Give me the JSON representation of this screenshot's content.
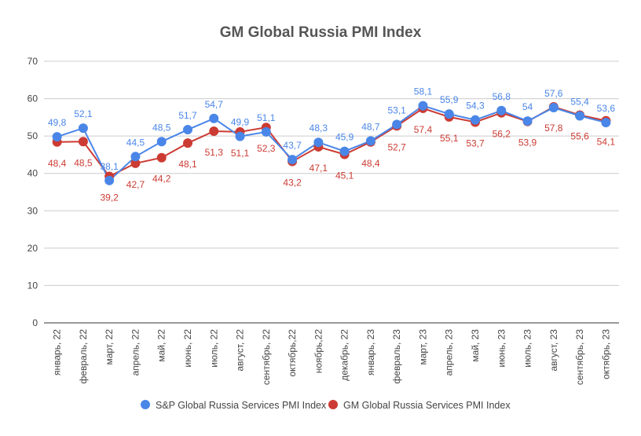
{
  "chart_data": {
    "type": "line",
    "title": "GM Global Russia PMI Index",
    "xlabel": "",
    "ylabel": "",
    "ylim": [
      0,
      70
    ],
    "yticks": [
      0,
      10,
      20,
      30,
      40,
      50,
      60,
      70
    ],
    "grid": true,
    "legend_position": "bottom",
    "categories": [
      "январь, 22",
      "февраль, 22",
      "март, 22",
      "апрель, 22",
      "май, 22",
      "июнь, 22",
      "июль, 22",
      "август, 22",
      "сентябрь, 22",
      "октябрь,22",
      "ноябрь,22",
      "декабрь, 22",
      "январь, 23",
      "февраль, 23",
      "март, 23",
      "апрель, 23",
      "май, 23",
      "июнь, 23",
      "июль, 23",
      "август, 23",
      "сентябрь, 23",
      "октябрь, 23"
    ],
    "series": [
      {
        "name": "S&P Global Russia Services PMI Index",
        "color": "#4a86e8",
        "values": [
          49.8,
          52.1,
          38.1,
          44.5,
          48.5,
          51.7,
          54.7,
          49.9,
          51.1,
          43.7,
          48.3,
          45.9,
          48.7,
          53.1,
          58.1,
          55.9,
          54.3,
          56.8,
          54,
          57.6,
          55.4,
          53.6
        ],
        "labels": [
          "49,8",
          "52,1",
          "38,1",
          "44,5",
          "48,5",
          "51,7",
          "54,7",
          "49,9",
          "51,1",
          "43,7",
          "48,3",
          "45,9",
          "48,7",
          "53,1",
          "58,1",
          "55,9",
          "54,3",
          "56,8",
          "54",
          "57,6",
          "55,4",
          "53,6"
        ]
      },
      {
        "name": "GM Global Russia Services PMI Index",
        "color": "#cc3b33",
        "values": [
          48.4,
          48.5,
          39.2,
          42.7,
          44.2,
          48.1,
          51.3,
          51.1,
          52.3,
          43.2,
          47.1,
          45.1,
          48.4,
          52.7,
          57.4,
          55.1,
          53.7,
          56.2,
          53.9,
          57.8,
          55.6,
          54.1
        ],
        "labels": [
          "48,4",
          "48,5",
          "39,2",
          "42,7",
          "44,2",
          "48,1",
          "51,3",
          "51,1",
          "52,3",
          "43,2",
          "47,1",
          "45,1",
          "48,4",
          "52,7",
          "57,4",
          "55,1",
          "53,7",
          "56,2",
          "53,9",
          "57,8",
          "55,6",
          "54,1"
        ]
      }
    ]
  }
}
